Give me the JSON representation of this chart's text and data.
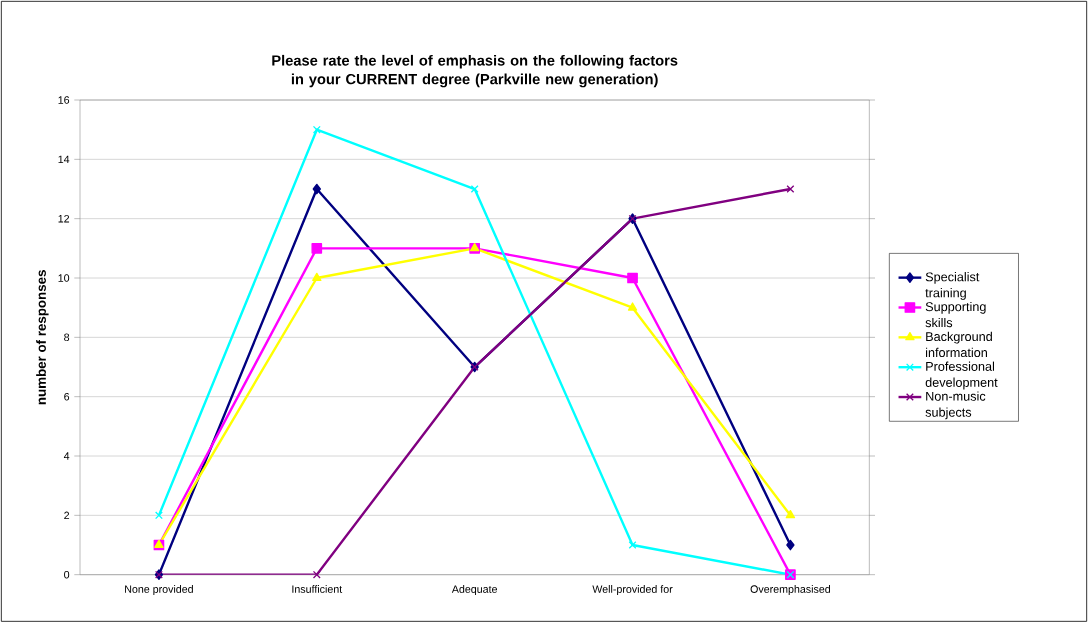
{
  "chart_data": {
    "type": "line",
    "title": "Please rate the level of emphasis on the following factors in your CURRENT degree (Parkville new generation)",
    "ylabel": "number of responses",
    "categories": [
      "None provided",
      "Insufficient",
      "Adequate",
      "Well-provided for",
      "Overemphasised"
    ],
    "series": [
      {
        "name": "Specialist training",
        "color": "#000080",
        "marker": "diamond",
        "values": [
          0,
          13,
          7,
          12,
          1
        ]
      },
      {
        "name": "Supporting skills",
        "color": "#ff00ff",
        "marker": "square",
        "values": [
          1,
          11,
          11,
          10,
          0
        ]
      },
      {
        "name": "Background information",
        "color": "#ffff00",
        "marker": "triangle",
        "values": [
          1,
          10,
          11,
          9,
          2
        ]
      },
      {
        "name": "Professional development",
        "color": "#00ffff",
        "marker": "cross",
        "values": [
          2,
          15,
          13,
          1,
          0
        ]
      },
      {
        "name": "Non-music subjects",
        "color": "#800080",
        "marker": "cross",
        "values": [
          0,
          0,
          7,
          12,
          13
        ]
      }
    ],
    "ylim": [
      0,
      16
    ],
    "yticks": [
      0,
      2,
      4,
      6,
      8,
      10,
      12,
      14,
      16
    ],
    "grid": "y",
    "legend": "right"
  }
}
